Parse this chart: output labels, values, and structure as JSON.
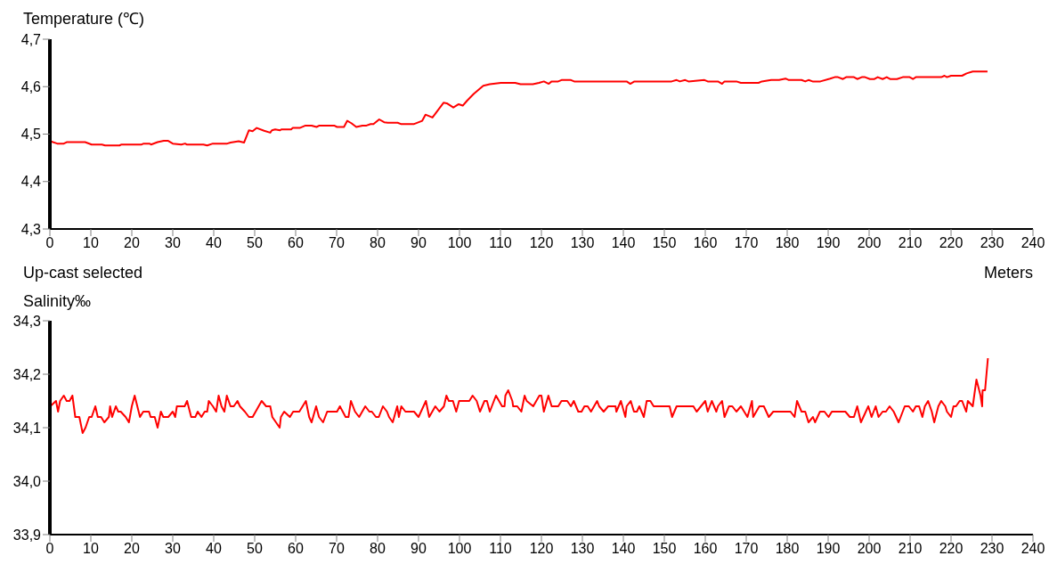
{
  "chart_data": [
    {
      "type": "line",
      "ylabel": "Temperature (℃)",
      "xlabel": "Meters",
      "annotations": [
        "Up-cast selected"
      ],
      "color": "#ff0000",
      "marker": "none",
      "line_style": "solid",
      "x": [
        0.1,
        1.8,
        3.4,
        4.1,
        8.6,
        10.2,
        12.7,
        13.5,
        17.0,
        17.5,
        22.4,
        22.9,
        24.3,
        24.7,
        26.3,
        27.8,
        28.8,
        30.0,
        32.1,
        33.0,
        33.4,
        37.5,
        38.4,
        39.8,
        43.3,
        44.1,
        46.1,
        47.4,
        48.6,
        49.5,
        50.5,
        52.3,
        53.8,
        54.2,
        55.0,
        56.2,
        56.5,
        58.9,
        59.3,
        61.0,
        62.4,
        63.9,
        65.1,
        65.8,
        69.4,
        70.1,
        71.8,
        72.6,
        73.6,
        74.8,
        76.3,
        77.3,
        78.3,
        79.0,
        80.4,
        81.6,
        82.5,
        84.9,
        85.8,
        88.8,
        90.9,
        91.7,
        93.4,
        96.1,
        96.9,
        98.5,
        99.8,
        100.8,
        101.8,
        103.5,
        105.8,
        107.4,
        110.1,
        113.6,
        114.9,
        117.9,
        119.4,
        120.6,
        121.8,
        122.5,
        124.1,
        124.9,
        127.2,
        128.0,
        140.8,
        141.7,
        142.7,
        151.8,
        153.0,
        153.8,
        155.1,
        155.9,
        159.8,
        160.6,
        163.1,
        164.1,
        164.7,
        167.6,
        168.7,
        173.0,
        173.8,
        176.1,
        178.0,
        179.6,
        180.4,
        183.5,
        184.4,
        185.2,
        186.2,
        188.1,
        190.5,
        191.6,
        192.4,
        193.6,
        194.4,
        196.3,
        197.1,
        198.2,
        199.0,
        200.2,
        201.3,
        202.1,
        203.3,
        204.3,
        205.1,
        206.8,
        208.2,
        209.9,
        210.7,
        211.4,
        217.6,
        218.4,
        219.0,
        220.0,
        222.7,
        223.8,
        225.3,
        228.9
      ],
      "values": [
        4.485,
        4.48,
        4.48,
        4.483,
        4.483,
        4.478,
        4.478,
        4.476,
        4.476,
        4.478,
        4.478,
        4.48,
        4.48,
        4.478,
        4.483,
        4.486,
        4.486,
        4.48,
        4.478,
        4.48,
        4.478,
        4.478,
        4.476,
        4.48,
        4.48,
        4.482,
        4.485,
        4.482,
        4.508,
        4.506,
        4.513,
        4.507,
        4.503,
        4.508,
        4.51,
        4.508,
        4.51,
        4.51,
        4.513,
        4.513,
        4.518,
        4.518,
        4.515,
        4.518,
        4.518,
        4.515,
        4.515,
        4.528,
        4.523,
        4.515,
        4.518,
        4.518,
        4.521,
        4.521,
        4.531,
        4.525,
        4.524,
        4.524,
        4.521,
        4.521,
        4.528,
        4.541,
        4.535,
        4.566,
        4.565,
        4.556,
        4.563,
        4.56,
        4.57,
        4.585,
        4.602,
        4.605,
        4.608,
        4.608,
        4.605,
        4.605,
        4.608,
        4.611,
        4.606,
        4.611,
        4.611,
        4.614,
        4.614,
        4.611,
        4.611,
        4.606,
        4.611,
        4.611,
        4.614,
        4.611,
        4.614,
        4.611,
        4.614,
        4.611,
        4.611,
        4.606,
        4.611,
        4.611,
        4.608,
        4.608,
        4.611,
        4.614,
        4.614,
        4.617,
        4.614,
        4.614,
        4.611,
        4.614,
        4.611,
        4.611,
        4.617,
        4.62,
        4.62,
        4.616,
        4.62,
        4.62,
        4.616,
        4.62,
        4.62,
        4.616,
        4.616,
        4.62,
        4.616,
        4.62,
        4.616,
        4.616,
        4.62,
        4.62,
        4.616,
        4.62,
        4.62,
        4.623,
        4.62,
        4.623,
        4.623,
        4.628,
        4.632,
        4.632
      ],
      "xlim": [
        0,
        240
      ],
      "xticks": [
        0,
        10,
        20,
        30,
        40,
        50,
        60,
        70,
        80,
        90,
        100,
        110,
        120,
        130,
        140,
        150,
        160,
        170,
        180,
        190,
        200,
        210,
        220,
        230,
        240
      ],
      "ylim": [
        4.3,
        4.7
      ],
      "yticks": [
        {
          "value": 4.3,
          "label": "4,3"
        },
        {
          "value": 4.4,
          "label": "4,4"
        },
        {
          "value": 4.5,
          "label": "4,5"
        },
        {
          "value": 4.6,
          "label": "4,6"
        },
        {
          "value": 4.7,
          "label": "4,7"
        }
      ]
    },
    {
      "type": "line",
      "ylabel": "Salinity‰",
      "color": "#ff0000",
      "marker": "none",
      "line_style": "solid",
      "x": [
        0.1,
        1.5,
        2,
        2.5,
        3.4,
        4.1,
        4.8,
        5.5,
        6.2,
        7.2,
        8.0,
        8.7,
        9.6,
        10.2,
        11.1,
        11.7,
        12.5,
        13.3,
        14.4,
        14.7,
        15.2,
        16.1,
        16.7,
        17.3,
        18.5,
        19.3,
        20.0,
        20.7,
        22.0,
        22.8,
        24.2,
        24.6,
        25.6,
        26.3,
        27.1,
        27.7,
        28.9,
        30.0,
        30.6,
        31.0,
        32.9,
        33.5,
        34.5,
        35.5,
        36.1,
        37.0,
        37.8,
        38.4,
        38.8,
        39.8,
        40.6,
        41.2,
        41.9,
        42.6,
        43.2,
        44.1,
        44.9,
        45.8,
        46.4,
        47.6,
        48.6,
        49.5,
        51.7,
        52.8,
        53.8,
        54.3,
        56.1,
        56.4,
        57.2,
        58.6,
        59.4,
        60.9,
        62.5,
        63.3,
        63.9,
        65.0,
        65.7,
        66.7,
        67.7,
        70.1,
        70.8,
        72.2,
        72.9,
        73.5,
        74.5,
        75.5,
        77.0,
        78.0,
        78.6,
        79.6,
        80.3,
        81.3,
        82.3,
        82.8,
        83.7,
        84.8,
        85.2,
        85.8,
        86.8,
        88.9,
        90.0,
        91.8,
        92.6,
        94.1,
        95.1,
        96.2,
        96.8,
        97.4,
        98.4,
        99.2,
        99.9,
        102.4,
        103.2,
        104.2,
        105.0,
        106.1,
        106.7,
        107.4,
        108.9,
        110.4,
        111.0,
        111.2,
        111.9,
        112.9,
        113.1,
        114.1,
        115.1,
        115.9,
        116.4,
        118.0,
        119.5,
        120.0,
        120.6,
        121.7,
        122.5,
        124.1,
        124.9,
        126.3,
        127.2,
        127.9,
        129.0,
        129.8,
        130.5,
        131.3,
        132.1,
        133.6,
        134.1,
        135.2,
        136.3,
        138.1,
        138.3,
        139.4,
        140.5,
        140.8,
        141.8,
        142.6,
        143.3,
        143.9,
        145.0,
        145.7,
        146.6,
        147.4,
        151.3,
        151.9,
        153.0,
        157.1,
        157.9,
        160.0,
        160.6,
        161.6,
        162.7,
        163.1,
        164.1,
        164.7,
        165.8,
        166.6,
        167.6,
        168.7,
        169.5,
        170.3,
        171.4,
        171.7,
        173.2,
        174.3,
        175.5,
        176.6,
        180.8,
        181.8,
        182.4,
        183.5,
        184.4,
        185.2,
        186.3,
        186.8,
        188.0,
        189.1,
        190.1,
        190.9,
        194.2,
        195.3,
        196.3,
        197.1,
        198.0,
        198.6,
        199.8,
        200.6,
        201.6,
        202.3,
        203.3,
        204.1,
        205.0,
        206.0,
        207.2,
        208.7,
        209.7,
        210.7,
        211.4,
        212.2,
        213.0,
        213.6,
        214.4,
        215.3,
        215.9,
        216.9,
        217.6,
        218.6,
        219.0,
        220.0,
        220.6,
        221.2,
        222.1,
        222.7,
        223.7,
        224.1,
        225.3,
        226.2,
        227.2,
        227.6,
        227.7,
        228.3,
        229.0
      ],
      "values": [
        34.14,
        34.15,
        34.13,
        34.15,
        34.16,
        34.15,
        34.15,
        34.16,
        34.12,
        34.12,
        34.09,
        34.1,
        34.12,
        34.12,
        34.14,
        34.12,
        34.12,
        34.11,
        34.12,
        34.14,
        34.12,
        34.14,
        34.13,
        34.13,
        34.12,
        34.11,
        34.14,
        34.16,
        34.12,
        34.13,
        34.13,
        34.12,
        34.12,
        34.1,
        34.13,
        34.12,
        34.12,
        34.13,
        34.12,
        34.14,
        34.14,
        34.15,
        34.12,
        34.12,
        34.13,
        34.12,
        34.13,
        34.13,
        34.15,
        34.14,
        34.13,
        34.16,
        34.14,
        34.13,
        34.16,
        34.14,
        34.14,
        34.15,
        34.14,
        34.13,
        34.12,
        34.12,
        34.15,
        34.14,
        34.14,
        34.12,
        34.1,
        34.12,
        34.13,
        34.12,
        34.13,
        34.13,
        34.15,
        34.12,
        34.11,
        34.14,
        34.12,
        34.11,
        34.13,
        34.13,
        34.14,
        34.12,
        34.12,
        34.15,
        34.13,
        34.12,
        34.14,
        34.13,
        34.13,
        34.12,
        34.12,
        34.14,
        34.13,
        34.12,
        34.11,
        34.14,
        34.12,
        34.14,
        34.13,
        34.13,
        34.12,
        34.15,
        34.12,
        34.14,
        34.13,
        34.14,
        34.16,
        34.15,
        34.15,
        34.13,
        34.15,
        34.15,
        34.16,
        34.15,
        34.13,
        34.15,
        34.15,
        34.13,
        34.16,
        34.14,
        34.14,
        34.16,
        34.17,
        34.15,
        34.14,
        34.14,
        34.13,
        34.16,
        34.15,
        34.14,
        34.16,
        34.16,
        34.13,
        34.16,
        34.14,
        34.14,
        34.15,
        34.15,
        34.14,
        34.15,
        34.13,
        34.13,
        34.14,
        34.14,
        34.13,
        34.15,
        34.14,
        34.13,
        34.14,
        34.14,
        34.13,
        34.15,
        34.12,
        34.14,
        34.15,
        34.13,
        34.13,
        34.14,
        34.12,
        34.15,
        34.15,
        34.14,
        34.14,
        34.12,
        34.14,
        34.14,
        34.13,
        34.15,
        34.13,
        34.15,
        34.13,
        34.14,
        34.15,
        34.12,
        34.14,
        34.14,
        34.13,
        34.14,
        34.13,
        34.12,
        34.15,
        34.12,
        34.14,
        34.14,
        34.12,
        34.13,
        34.13,
        34.12,
        34.15,
        34.13,
        34.13,
        34.11,
        34.12,
        34.11,
        34.13,
        34.13,
        34.12,
        34.13,
        34.13,
        34.12,
        34.12,
        34.14,
        34.11,
        34.12,
        34.14,
        34.12,
        34.14,
        34.12,
        34.13,
        34.13,
        34.14,
        34.13,
        34.11,
        34.14,
        34.14,
        34.13,
        34.14,
        34.14,
        34.12,
        34.14,
        34.15,
        34.13,
        34.11,
        34.14,
        34.15,
        34.14,
        34.13,
        34.12,
        34.14,
        34.14,
        34.15,
        34.15,
        34.13,
        34.15,
        34.14,
        34.19,
        34.16,
        34.14,
        34.17,
        34.17,
        34.23
      ],
      "xlim": [
        0,
        240
      ],
      "xticks": [
        0,
        10,
        20,
        30,
        40,
        50,
        60,
        70,
        80,
        90,
        100,
        110,
        120,
        130,
        140,
        150,
        160,
        170,
        180,
        190,
        200,
        210,
        220,
        230,
        240
      ],
      "ylim": [
        33.9,
        34.3
      ],
      "yticks": [
        {
          "value": 33.9,
          "label": "33,9"
        },
        {
          "value": 34.0,
          "label": "34,0"
        },
        {
          "value": 34.1,
          "label": "34,1"
        },
        {
          "value": 34.2,
          "label": "34,2"
        },
        {
          "value": 34.3,
          "label": "34,3"
        }
      ]
    }
  ]
}
